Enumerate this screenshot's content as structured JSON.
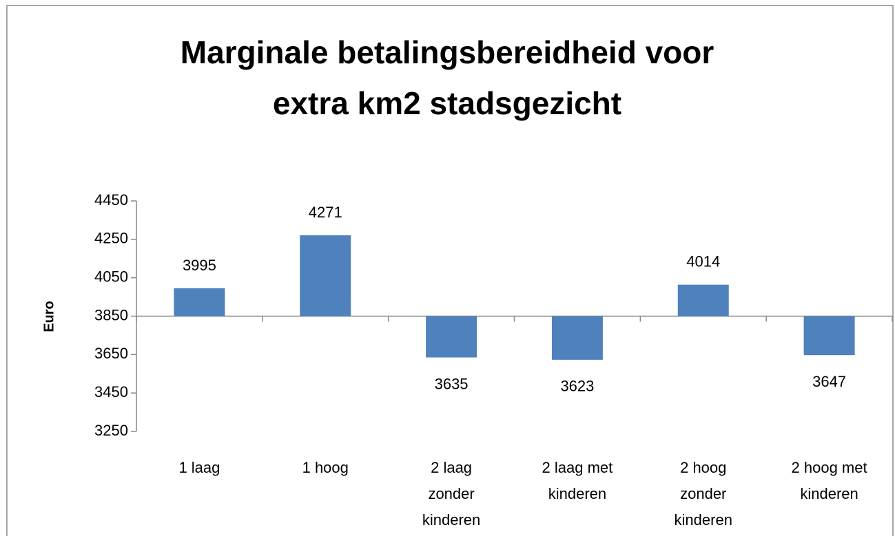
{
  "chart_data": {
    "type": "bar",
    "title": "Marginale betalingsbereidheid voor extra km2 stadsgezicht",
    "y_label": "Euro",
    "categories": [
      "1 laag",
      "1 hoog",
      "2 laag zonder kinderen",
      "2 laag met kinderen",
      "2 hoog zonder kinderen",
      "2 hoog met kinderen"
    ],
    "values": [
      3995,
      4271,
      3635,
      3623,
      4014,
      3647
    ],
    "color": "#4f81bd",
    "ylim": [
      3250,
      4450
    ],
    "yticks": [
      3250,
      3450,
      3650,
      3850,
      4050,
      4250,
      4450
    ],
    "baseline": 3850,
    "grid": false
  }
}
